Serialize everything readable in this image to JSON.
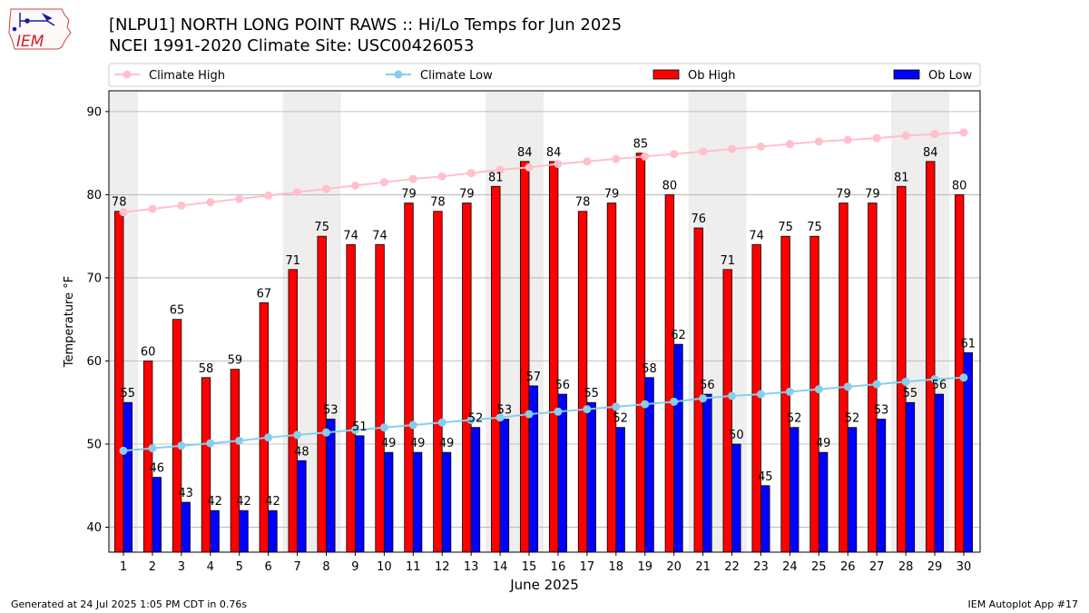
{
  "header": {
    "title": "[NLPU1] NORTH LONG POINT RAWS :: Hi/Lo Temps for Jun 2025",
    "subtitle": "NCEI 1991-2020 Climate Site: USC00426053",
    "logo_text": "IEM"
  },
  "footer": {
    "generated": "Generated at 24 Jul 2025 1:05 PM CDT in 0.76s",
    "app": "IEM Autoplot App #17"
  },
  "colors": {
    "ob_high": "#ff0000",
    "ob_low": "#0000ff",
    "climate_high": "#ffc0cb",
    "climate_low": "#87ceeb",
    "weekend_shade": "#eeeeee",
    "grid": "#b0b0b0"
  },
  "chart_data": {
    "type": "bar",
    "xlabel": "June 2025",
    "ylabel": "Temperature °F",
    "ylim": [
      37,
      92.5
    ],
    "yticks": [
      40,
      50,
      60,
      70,
      80,
      90
    ],
    "grid": "horizontal",
    "legend_placement": "top, above plot",
    "categories": [
      "1",
      "2",
      "3",
      "4",
      "5",
      "6",
      "7",
      "8",
      "9",
      "10",
      "11",
      "12",
      "13",
      "14",
      "15",
      "16",
      "17",
      "18",
      "19",
      "20",
      "21",
      "22",
      "23",
      "24",
      "25",
      "26",
      "27",
      "28",
      "29",
      "30"
    ],
    "shaded_days": [
      1,
      7,
      8,
      14,
      15,
      21,
      22,
      28,
      29
    ],
    "series": [
      {
        "name": "Climate High",
        "kind": "line",
        "values": [
          77.9,
          78.3,
          78.7,
          79.1,
          79.5,
          79.9,
          80.3,
          80.7,
          81.1,
          81.5,
          81.9,
          82.2,
          82.6,
          83.0,
          83.3,
          83.7,
          84.0,
          84.3,
          84.6,
          84.9,
          85.2,
          85.5,
          85.8,
          86.1,
          86.4,
          86.6,
          86.8,
          87.1,
          87.3,
          87.5
        ]
      },
      {
        "name": "Climate Low",
        "kind": "line",
        "values": [
          49.2,
          49.5,
          49.8,
          50.1,
          50.4,
          50.8,
          51.1,
          51.4,
          51.7,
          52.0,
          52.3,
          52.6,
          52.9,
          53.2,
          53.6,
          53.9,
          54.2,
          54.5,
          54.8,
          55.1,
          55.5,
          55.8,
          56.0,
          56.3,
          56.6,
          56.9,
          57.2,
          57.5,
          57.8,
          58.0
        ]
      },
      {
        "name": "Ob High",
        "kind": "bar",
        "values": [
          78,
          60,
          65,
          58,
          59,
          67,
          71,
          75,
          74,
          74,
          79,
          78,
          79,
          81,
          84,
          84,
          78,
          79,
          85,
          80,
          76,
          71,
          74,
          75,
          75,
          79,
          79,
          81,
          84,
          80
        ]
      },
      {
        "name": "Ob Low",
        "kind": "bar",
        "values": [
          55,
          46,
          43,
          42,
          42,
          42,
          48,
          53,
          51,
          49,
          49,
          49,
          52,
          53,
          57,
          56,
          55,
          52,
          58,
          62,
          56,
          50,
          45,
          52,
          49,
          52,
          53,
          55,
          56,
          61
        ]
      }
    ]
  }
}
